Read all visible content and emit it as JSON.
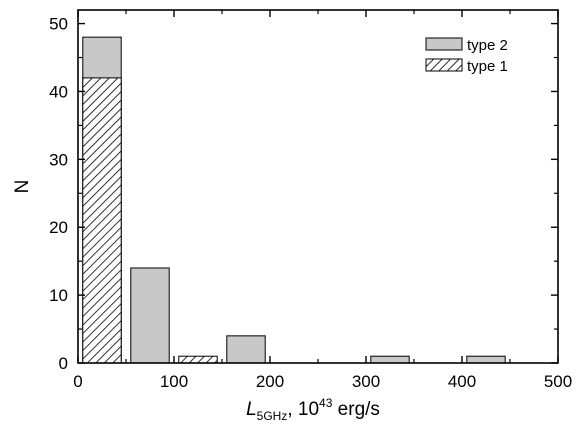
{
  "chart_data": {
    "type": "bar",
    "title": "",
    "xlabel": {
      "main": "L",
      "subscript": "5GHz",
      "rest_prefix": ", 10",
      "superscript": "43",
      "rest_suffix": " erg/s"
    },
    "ylabel": "N",
    "xlim": [
      0,
      500
    ],
    "ylim": [
      0,
      52
    ],
    "xticks": [
      0,
      100,
      200,
      300,
      400,
      500
    ],
    "yticks": [
      0,
      10,
      20,
      30,
      40,
      50
    ],
    "bin_edges": [
      0,
      50,
      100,
      150,
      200,
      250,
      300,
      350,
      400,
      450,
      500
    ],
    "bar_width": 40,
    "grid": false,
    "legend_position": "top-right",
    "colors": {
      "type2": "#c8c8c8",
      "type1_hatch": "#000000"
    },
    "series": [
      {
        "name": "type 2",
        "style": "solid-gray",
        "bars": [
          {
            "x_center": 25,
            "value": 48
          },
          {
            "x_center": 75,
            "value": 14
          },
          {
            "x_center": 125,
            "value": 0
          },
          {
            "x_center": 175,
            "value": 4
          },
          {
            "x_center": 325,
            "value": 1
          },
          {
            "x_center": 425,
            "value": 1
          }
        ]
      },
      {
        "name": "type 1",
        "style": "hatched",
        "bars": [
          {
            "x_center": 25,
            "value": 42
          },
          {
            "x_center": 125,
            "value": 1
          }
        ]
      }
    ]
  }
}
